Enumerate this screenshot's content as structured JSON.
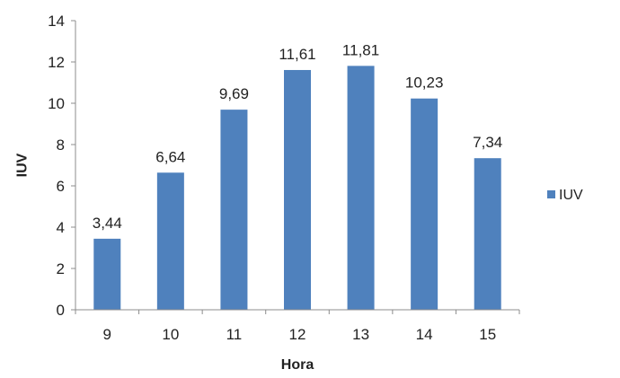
{
  "chart_data": {
    "type": "bar",
    "categories": [
      "9",
      "10",
      "11",
      "12",
      "13",
      "14",
      "15"
    ],
    "series": [
      {
        "name": "IUV",
        "values": [
          3.44,
          6.64,
          9.69,
          11.61,
          11.81,
          10.23,
          7.34
        ],
        "labels": [
          "3,44",
          "6,64",
          "9,69",
          "11,61",
          "11,81",
          "10,23",
          "7,34"
        ],
        "color": "#4F81BD"
      }
    ],
    "xlabel": "Hora",
    "ylabel": "IUV",
    "ylim": [
      0,
      14
    ],
    "yticks": [
      "0",
      "2",
      "4",
      "6",
      "8",
      "10",
      "12",
      "14"
    ],
    "legend": {
      "position": "right",
      "entries": [
        "IUV"
      ]
    },
    "grid": false
  }
}
